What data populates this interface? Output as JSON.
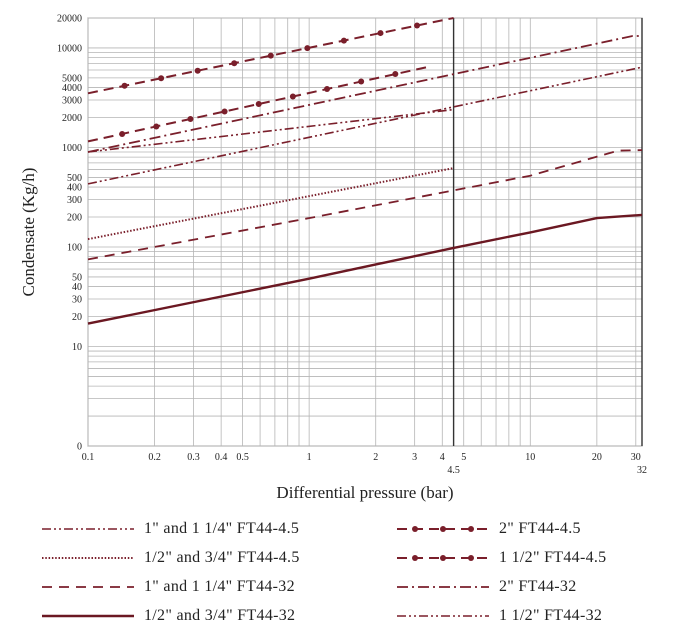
{
  "chart_data": {
    "type": "line",
    "xlabel": "Differential pressure (bar)",
    "ylabel": "Condensate (Kg/h)",
    "x_scale": "log",
    "y_scale": "log",
    "xlim": [
      0.1,
      32
    ],
    "ylim": [
      1,
      20000
    ],
    "grid": true,
    "x_ticks": [
      {
        "v": 0.1,
        "label": "0.1"
      },
      {
        "v": 0.2,
        "label": "0.2"
      },
      {
        "v": 0.3,
        "label": "0.3"
      },
      {
        "v": 0.4,
        "label": "0.4"
      },
      {
        "v": 0.5,
        "label": "0.5"
      },
      {
        "v": 1,
        "label": "1"
      },
      {
        "v": 2,
        "label": "2"
      },
      {
        "v": 3,
        "label": "3"
      },
      {
        "v": 4,
        "label": "4"
      },
      {
        "v": 5,
        "label": "5"
      },
      {
        "v": 10,
        "label": "10"
      },
      {
        "v": 20,
        "label": "20"
      },
      {
        "v": 30,
        "label": "30"
      }
    ],
    "x_extra_ticks": [
      {
        "v": 4.5,
        "label": "4.5"
      },
      {
        "v": 32,
        "label": "32"
      }
    ],
    "y_ticks": [
      {
        "v": 1,
        "label": "0"
      },
      {
        "v": 10,
        "label": "10"
      },
      {
        "v": 20,
        "label": "20"
      },
      {
        "v": 30,
        "label": "30"
      },
      {
        "v": 40,
        "label": "40"
      },
      {
        "v": 50,
        "label": "50"
      },
      {
        "v": 100,
        "label": "100"
      },
      {
        "v": 200,
        "label": "200"
      },
      {
        "v": 300,
        "label": "300"
      },
      {
        "v": 400,
        "label": "400"
      },
      {
        "v": 500,
        "label": "500"
      },
      {
        "v": 1000,
        "label": "1000"
      },
      {
        "v": 2000,
        "label": "2000"
      },
      {
        "v": 3000,
        "label": "3000"
      },
      {
        "v": 4000,
        "label": "4000"
      },
      {
        "v": 5000,
        "label": "5000"
      },
      {
        "v": 10000,
        "label": "10000"
      },
      {
        "v": 20000,
        "label": "20000"
      }
    ],
    "series": [
      {
        "name": "1\" and 1 1/4\" FT44-4.5",
        "style": "dash-dot-dot",
        "color": "#7a1f2b",
        "x": [
          0.1,
          4.5
        ],
        "y": [
          900,
          2400
        ]
      },
      {
        "name": "1/2\" and 3/4\" FT44-4.5",
        "style": "dotted",
        "color": "#7a1f2b",
        "x": [
          0.1,
          4.5
        ],
        "y": [
          120,
          620
        ]
      },
      {
        "name": "1\" and 1 1/4\" FT44-32",
        "style": "dashed",
        "color": "#7a1f2b",
        "x": [
          0.1,
          1,
          10,
          25,
          32
        ],
        "y": [
          75,
          195,
          520,
          930,
          940
        ]
      },
      {
        "name": "1/2\" and 3/4\" FT44-32",
        "style": "solid",
        "color": "#6b1822",
        "x": [
          0.1,
          1,
          4.5,
          10,
          20,
          32
        ],
        "y": [
          17,
          48,
          98,
          140,
          195,
          210
        ]
      },
      {
        "name": "2\" FT44-4.5",
        "style": "dash-dot-marker",
        "color": "#7a1f2b",
        "x": [
          0.1,
          4.5
        ],
        "y": [
          3500,
          20000
        ]
      },
      {
        "name": "1 1/2\" FT44-4.5",
        "style": "dash-dot-marker",
        "color": "#7a1f2b",
        "x": [
          0.1,
          3.5
        ],
        "y": [
          1150,
          6500
        ]
      },
      {
        "name": "2\" FT44-32",
        "style": "dash-dot",
        "color": "#7a1f2b",
        "x": [
          0.1,
          29,
          32
        ],
        "y": [
          900,
          13200,
          13200
        ]
      },
      {
        "name": "1 1/2\" FT44-32",
        "style": "dash-dot-dot",
        "color": "#7a1f2b",
        "x": [
          0.1,
          32
        ],
        "y": [
          430,
          6400
        ]
      }
    ],
    "legend_placement": "bottom"
  }
}
